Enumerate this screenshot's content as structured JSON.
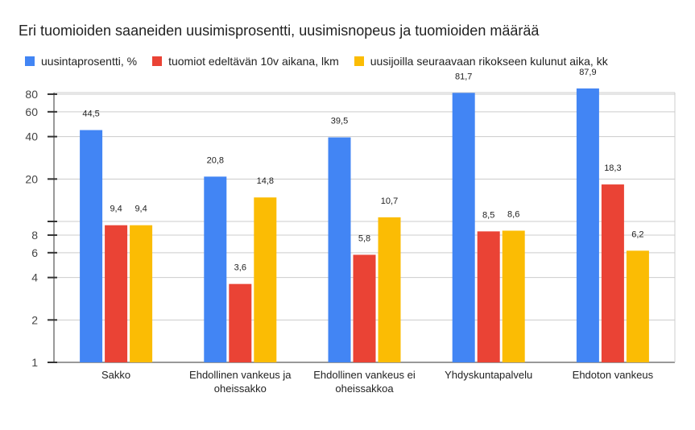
{
  "chart_data": {
    "type": "bar",
    "title": "Eri tuomioiden saaneiden uusimisprosentti, uusimisnopeus ja tuomioiden määrää",
    "xlabel": "",
    "ylabel": "",
    "y_scale": "log",
    "ylim": [
      1,
      100
    ],
    "grid": true,
    "legend_position": "top-left",
    "y_ticks": [
      1,
      2,
      4,
      6,
      8,
      20,
      40,
      60,
      80
    ],
    "y_tick_labels": [
      "1",
      "2",
      "4",
      "6",
      "8",
      "20",
      "40",
      "60",
      "80"
    ],
    "categories": [
      [
        "Sakko"
      ],
      [
        "Ehdollinen vankeus ja",
        "oheissakko"
      ],
      [
        "Ehdollinen vankeus ei",
        "oheissakkoa"
      ],
      [
        "Yhdyskuntapalvelu"
      ],
      [
        "Ehdoton vankeus"
      ]
    ],
    "series": [
      {
        "name": "uusintaprosentti, %",
        "color": "#4285f4",
        "values": [
          44.5,
          20.8,
          39.5,
          81.7,
          87.9
        ],
        "labels": [
          "44,5",
          "20,8",
          "39,5",
          "81,7",
          "87,9"
        ]
      },
      {
        "name": "tuomiot edeltävän 10v aikana, lkm",
        "color": "#ea4335",
        "values": [
          9.4,
          3.6,
          5.8,
          8.5,
          18.3
        ],
        "labels": [
          "9,4",
          "3,6",
          "5,8",
          "8,5",
          "18,3"
        ]
      },
      {
        "name": "uusijoilla seuraavaan rikokseen kulunut aika, kk",
        "color": "#fbbc04",
        "values": [
          9.4,
          14.8,
          10.7,
          8.6,
          6.2
        ],
        "labels": [
          "9,4",
          "14,8",
          "10,7",
          "8,6",
          "6,2"
        ]
      }
    ]
  }
}
